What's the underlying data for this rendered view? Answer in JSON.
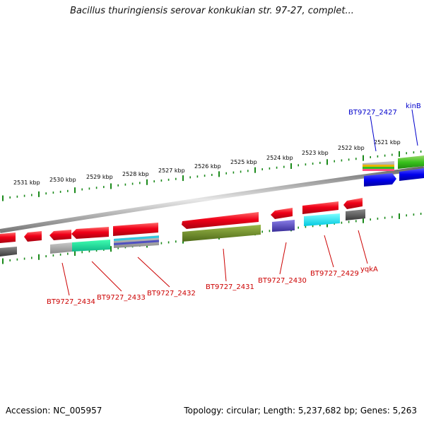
{
  "title": "Bacillus thuringiensis serovar konkukian str. 97-27, complet...",
  "footer": {
    "accession": "Accession: NC_005957",
    "summary": "Topology: circular; Length: 5,237,682 bp; Genes: 5,263"
  },
  "scale_labels": [
    "2531 kbp",
    "2530 kbp",
    "2529 kbp",
    "2528 kbp",
    "2527 kbp",
    "2526 kbp",
    "2525 kbp",
    "2524 kbp",
    "2523 kbp",
    "2522 kbp",
    "2521 kbp"
  ],
  "gene_labels_bottom": [
    "BT9727_2434",
    "BT9727_2433",
    "BT9727_2432",
    "BT9727_2431",
    "BT9727_2430",
    "BT9727_2429",
    "yqkA"
  ],
  "gene_labels_top": [
    "BT9727_2427",
    "kinB"
  ],
  "colors": {
    "gene": "#e8001a",
    "label_bottom": "#cc0000",
    "label_top": "#0000cc",
    "tick": "#1a8a1a",
    "backbone": "#9a9a9a"
  }
}
